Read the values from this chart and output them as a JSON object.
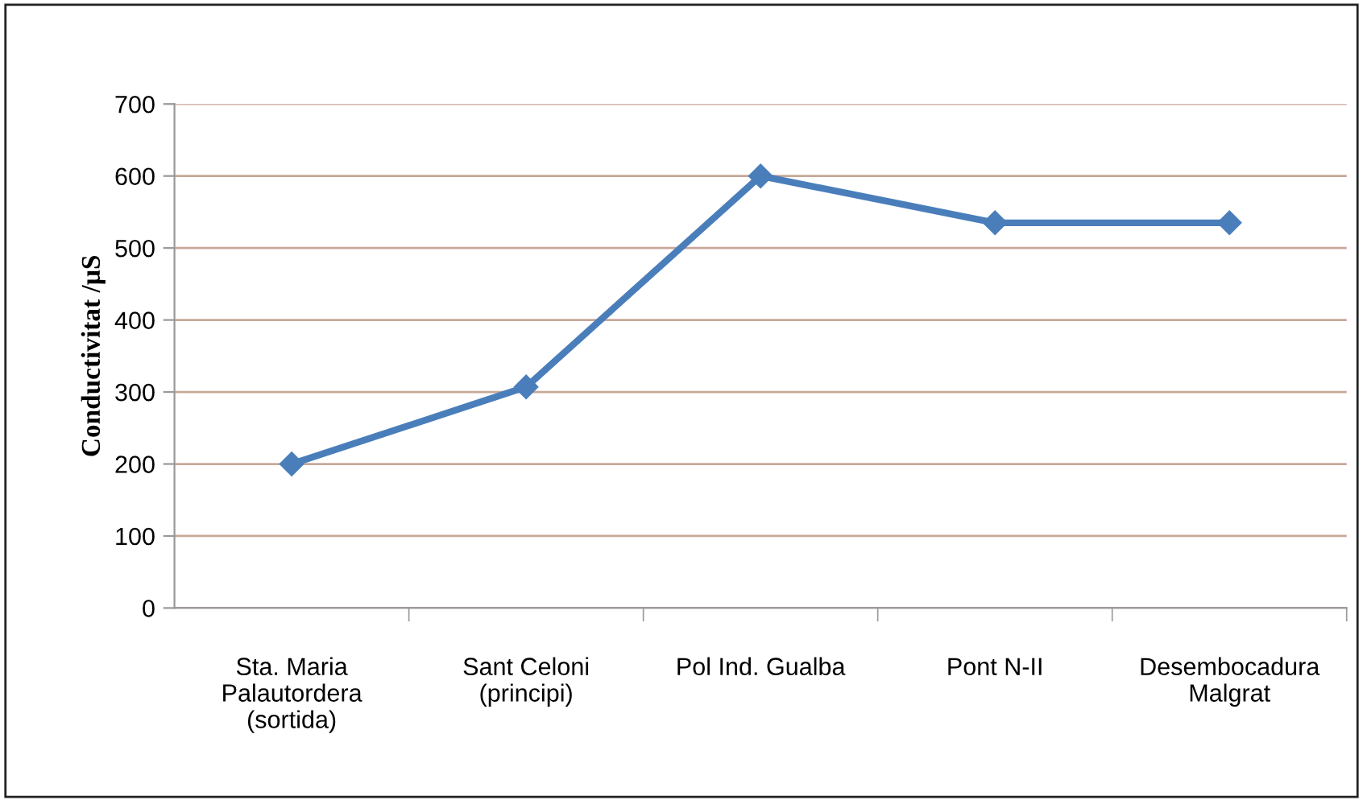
{
  "chart_data": {
    "type": "line",
    "ylabel": "Conductivitat /µS",
    "categories": [
      "Sta. Maria\nPalautordera\n(sortida)",
      "Sant Celoni\n(principi)",
      "Pol Ind. Gualba",
      "Pont N-II",
      "Desembocadura\nMalgrat"
    ],
    "series": [
      {
        "color": "#4a7ebb",
        "values": [
          200,
          307,
          600,
          535,
          535
        ]
      }
    ],
    "ylim": [
      0,
      700
    ],
    "yticks": [
      0,
      100,
      200,
      300,
      400,
      500,
      600,
      700
    ],
    "grid": "y",
    "marker": "diamond",
    "line_style": "solid",
    "legend": false
  }
}
